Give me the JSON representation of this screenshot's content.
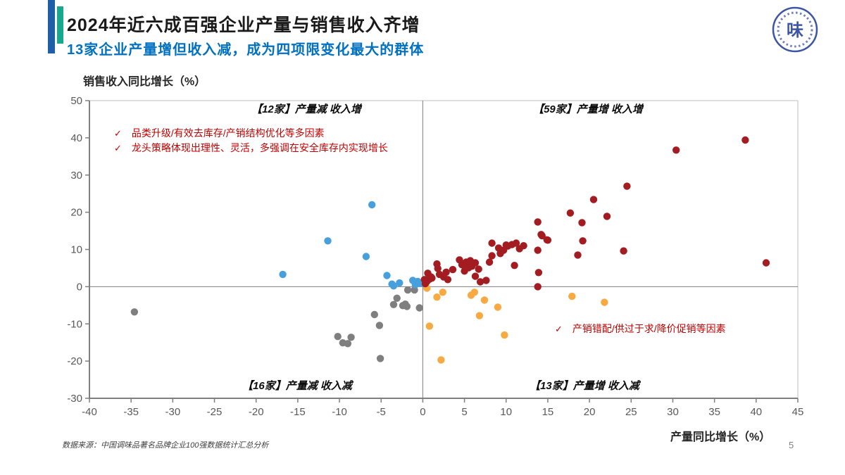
{
  "slide": {
    "title": "2024年近六成百强企业产量与销售收入齐增",
    "subtitle": "13家企业产量增但收入减，成为四项限变化最大的群体",
    "source_note": "数据来源：中国调味品著名品牌企业100强数据统计汇总分析",
    "page_number": "5",
    "logo": {
      "icon": "condiment-association-seal-icon",
      "glyph": "味",
      "color": "#3D55A5"
    }
  },
  "colors": {
    "accent_bar_blue": "#1F5FA8",
    "accent_bar_teal": "#17A98E",
    "subtitle_blue": "#0070C0",
    "annotation_red": "#C00000",
    "axis_line": "#7F7F7F",
    "plot_border": "#BFBFBF",
    "tick_label": "#595959"
  },
  "chart_data": {
    "type": "scatter",
    "xlabel": "产量同比增长（%）",
    "ylabel": "销售收入同比增长（%）",
    "xlim": [
      -40,
      45
    ],
    "ylim": [
      -30,
      50
    ],
    "x_ticks": [
      -40,
      -35,
      -30,
      -25,
      -20,
      -15,
      -10,
      -5,
      0,
      5,
      10,
      15,
      20,
      25,
      30,
      35,
      40,
      45
    ],
    "y_ticks": [
      50,
      40,
      30,
      20,
      10,
      0,
      -10,
      -20,
      -30
    ],
    "grid": false,
    "legend": "none",
    "quadrant_labels": [
      {
        "quadrant": "top-left",
        "text": "【12家】产量减 收入增"
      },
      {
        "quadrant": "top-right",
        "text": "【59家】产量增 收入增"
      },
      {
        "quadrant": "bottom-left",
        "text": "【16家】产量减 收入减"
      },
      {
        "quadrant": "bottom-right",
        "text": "【13家】产量增 收入减"
      }
    ],
    "annotations": {
      "top_left": [
        {
          "mark": "✓",
          "text": "品类升级/有效去库存/产销结构优化等多因素"
        },
        {
          "mark": "✓",
          "text": "龙头策略体现出理性、灵活，多强调在安全库存内实现增长"
        }
      ],
      "bottom_right": [
        {
          "mark": "✓",
          "text": "产销错配/供过于求/降价促销等因素"
        }
      ]
    },
    "series": [
      {
        "name": "产量减 收入增（12家）",
        "color": "#47A0DB",
        "points": [
          [
            -6.1,
            22
          ],
          [
            -11.4,
            12.3
          ],
          [
            -6.8,
            8.1
          ],
          [
            -16.8,
            3.3
          ],
          [
            -4.3,
            3
          ],
          [
            -3.7,
            0.7
          ],
          [
            -2.8,
            1
          ],
          [
            -1.2,
            1.7
          ],
          [
            -0.6,
            1.4
          ],
          [
            -3.5,
            0.2
          ],
          [
            -0.9,
            0.5
          ],
          [
            -0.3,
            0.9
          ]
        ]
      },
      {
        "name": "产量增 收入增（59家）",
        "color": "#A21C21",
        "points": [
          [
            38.7,
            39.4
          ],
          [
            30.4,
            36.7
          ],
          [
            41.2,
            6.4
          ],
          [
            24.5,
            27
          ],
          [
            20.5,
            23.4
          ],
          [
            22.1,
            18.9
          ],
          [
            17.7,
            19.8
          ],
          [
            19.1,
            17.2
          ],
          [
            13.8,
            17.4
          ],
          [
            14.2,
            14
          ],
          [
            14.3,
            13.7
          ],
          [
            14.9,
            12.6
          ],
          [
            19.2,
            12.3
          ],
          [
            15,
            12.5
          ],
          [
            24.1,
            9.6
          ],
          [
            18.6,
            8.5
          ],
          [
            13.8,
            9.8
          ],
          [
            13.9,
            3.8
          ],
          [
            13.8,
            0
          ],
          [
            10,
            11.2
          ],
          [
            10.7,
            11.3
          ],
          [
            11.2,
            11.7
          ],
          [
            11.6,
            10.2
          ],
          [
            9.7,
            9.8
          ],
          [
            8.3,
            11.7
          ],
          [
            9.1,
            10.4
          ],
          [
            10.2,
            10.9
          ],
          [
            8.3,
            8.3
          ],
          [
            8,
            6.6
          ],
          [
            11,
            5.7
          ],
          [
            4.4,
            7.2
          ],
          [
            5.2,
            6.6
          ],
          [
            5.7,
            7
          ],
          [
            6.3,
            6.4
          ],
          [
            5.5,
            5.1
          ],
          [
            6.7,
            4.7
          ],
          [
            4.9,
            6.1
          ],
          [
            5.9,
            5.5
          ],
          [
            1.7,
            6.1
          ],
          [
            1.8,
            4.9
          ],
          [
            6.3,
            2.8
          ],
          [
            7.6,
            1.7
          ],
          [
            6.9,
            1.3
          ],
          [
            2.5,
            2.6
          ],
          [
            3,
            1.9
          ],
          [
            2.8,
            3.9
          ],
          [
            3.6,
            4.6
          ],
          [
            5,
            4.2
          ],
          [
            4.7,
            5.9
          ],
          [
            0.6,
            3.6
          ],
          [
            1,
            2.6
          ],
          [
            0.2,
            1.9
          ],
          [
            1.1,
            2.3
          ],
          [
            0.3,
            0.8
          ],
          [
            0.5,
            1.4
          ],
          [
            0.8,
            2
          ],
          [
            2,
            3.3
          ],
          [
            12.1,
            11
          ],
          [
            9.3,
            8.9
          ]
        ]
      },
      {
        "name": "产量减 收入减（16家）",
        "color": "#7F7F7F",
        "points": [
          [
            -34.6,
            -6.8
          ],
          [
            -10.2,
            -13.4
          ],
          [
            -8.6,
            -13.6
          ],
          [
            -9.6,
            -15.1
          ],
          [
            -9,
            -15.3
          ],
          [
            -5.8,
            -7.5
          ],
          [
            -5.2,
            -10.4
          ],
          [
            -5.1,
            -19.3
          ],
          [
            -3.5,
            -4.8
          ],
          [
            -3.1,
            -3.1
          ],
          [
            -2.4,
            -5.1
          ],
          [
            -1.9,
            -5.3
          ],
          [
            -2.1,
            -4.7
          ],
          [
            -1,
            -0.9
          ],
          [
            -1.8,
            -0.9
          ],
          [
            -0.4,
            -5.7
          ]
        ]
      },
      {
        "name": "产量增 收入减（13家）",
        "color": "#F7A942",
        "points": [
          [
            0.5,
            -0.4
          ],
          [
            1.7,
            -2.8
          ],
          [
            2.4,
            -1.5
          ],
          [
            5.8,
            -2.3
          ],
          [
            6.2,
            -1.5
          ],
          [
            7.4,
            -3.6
          ],
          [
            9,
            -5.5
          ],
          [
            6.8,
            -7.8
          ],
          [
            0.8,
            -10.6
          ],
          [
            9.8,
            -13
          ],
          [
            2.2,
            -19.7
          ],
          [
            17.9,
            -2.6
          ],
          [
            21.8,
            -4.2
          ]
        ]
      }
    ]
  }
}
